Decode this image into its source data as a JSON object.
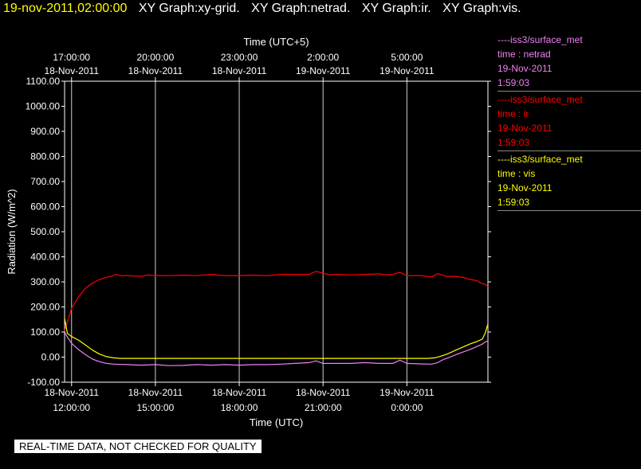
{
  "header": {
    "timestamp": "19-nov-2011,02:00:00",
    "graph_titles": [
      "XY Graph:xy-grid.",
      "XY Graph:netrad.",
      "XY Graph:ir.",
      "XY Graph:vis."
    ]
  },
  "legend": [
    {
      "source": "----iss3/surface_met",
      "label": "time : netrad",
      "date": "19-Nov-2011",
      "time": "1:59:03",
      "color": "#ee82ee"
    },
    {
      "source": "----iss3/surface_met",
      "label": "time : ir",
      "date": "19-Nov-2011",
      "time": "1:59:03",
      "color": "#ff0000"
    },
    {
      "source": "----iss3/surface_met",
      "label": "time : vis",
      "date": "19-Nov-2011",
      "time": "1:59:03",
      "color": "#ffff00"
    }
  ],
  "quality_note": "REAL-TIME DATA, NOT CHECKED FOR QUALITY",
  "chart_data": {
    "type": "line",
    "xlabel": "Time (UTC)",
    "x2label": "Time (UTC+5)",
    "ylabel": "Radiation (W/m^2)",
    "x_range_hours": [
      11.75,
      26.9
    ],
    "ylim": [
      -100,
      1100
    ],
    "y_ticks": [
      -100,
      0,
      100,
      200,
      300,
      400,
      500,
      600,
      700,
      800,
      900,
      1000,
      1100
    ],
    "y_tick_labels": [
      "-100.00",
      "0.00",
      "100.00",
      "200.00",
      "300.00",
      "400.00",
      "500.00",
      "600.00",
      "700.00",
      "800.00",
      "900.00",
      "1000.00",
      "1100.00"
    ],
    "grid": true,
    "bottom_ticks": [
      {
        "h": 12,
        "date": "18-Nov-2011",
        "time": "12:00:00"
      },
      {
        "h": 15,
        "date": "18-Nov-2011",
        "time": "15:00:00"
      },
      {
        "h": 18,
        "date": "18-Nov-2011",
        "time": "18:00:00"
      },
      {
        "h": 21,
        "date": "18-Nov-2011",
        "time": "21:00:00"
      },
      {
        "h": 24,
        "date": "19-Nov-2011",
        "time": "0:00:00"
      }
    ],
    "top_ticks": [
      {
        "h": 12,
        "time": "17:00:00",
        "date": "18-Nov-2011"
      },
      {
        "h": 15,
        "time": "20:00:00",
        "date": "18-Nov-2011"
      },
      {
        "h": 18,
        "time": "23:00:00",
        "date": "18-Nov-2011"
      },
      {
        "h": 21,
        "time": "2:00:00",
        "date": "19-Nov-2011"
      },
      {
        "h": 24,
        "time": "5:00:00",
        "date": "19-Nov-2011"
      }
    ],
    "series": [
      {
        "key": "ir",
        "color": "#ff0000",
        "points": [
          [
            11.75,
            105
          ],
          [
            11.85,
            140
          ],
          [
            12.0,
            195
          ],
          [
            12.25,
            240
          ],
          [
            12.5,
            275
          ],
          [
            12.75,
            295
          ],
          [
            13.0,
            310
          ],
          [
            13.25,
            318
          ],
          [
            13.4,
            322
          ],
          [
            13.5,
            325
          ],
          [
            13.6,
            330
          ],
          [
            13.75,
            325
          ],
          [
            14.0,
            325
          ],
          [
            14.5,
            322
          ],
          [
            14.75,
            328
          ],
          [
            15.0,
            325
          ],
          [
            15.5,
            325
          ],
          [
            16.0,
            327
          ],
          [
            16.5,
            325
          ],
          [
            17.0,
            330
          ],
          [
            17.5,
            325
          ],
          [
            18.0,
            325
          ],
          [
            18.5,
            327
          ],
          [
            19.0,
            325
          ],
          [
            19.5,
            330
          ],
          [
            20.0,
            330
          ],
          [
            20.5,
            330
          ],
          [
            20.75,
            342
          ],
          [
            21.0,
            335
          ],
          [
            21.25,
            328
          ],
          [
            21.5,
            330
          ],
          [
            22.0,
            328
          ],
          [
            22.5,
            330
          ],
          [
            23.0,
            332
          ],
          [
            23.25,
            328
          ],
          [
            23.5,
            330
          ],
          [
            23.75,
            338
          ],
          [
            24.0,
            325
          ],
          [
            24.5,
            325
          ],
          [
            24.9,
            320
          ],
          [
            25.1,
            333
          ],
          [
            25.4,
            322
          ],
          [
            25.75,
            322
          ],
          [
            26.0,
            318
          ],
          [
            26.25,
            310
          ],
          [
            26.5,
            305
          ],
          [
            26.65,
            295
          ],
          [
            26.8,
            290
          ],
          [
            26.9,
            280
          ]
        ]
      },
      {
        "key": "vis",
        "color": "#ffff00",
        "points": [
          [
            11.75,
            155
          ],
          [
            11.85,
            95
          ],
          [
            12.0,
            82
          ],
          [
            12.25,
            68
          ],
          [
            12.5,
            48
          ],
          [
            12.75,
            28
          ],
          [
            13.0,
            12
          ],
          [
            13.25,
            2
          ],
          [
            13.5,
            -3
          ],
          [
            13.75,
            -5
          ],
          [
            14.5,
            -5
          ],
          [
            16.0,
            -5
          ],
          [
            18.0,
            -5
          ],
          [
            20.0,
            -5
          ],
          [
            22.0,
            -5
          ],
          [
            24.0,
            -5
          ],
          [
            24.75,
            -5
          ],
          [
            25.0,
            -3
          ],
          [
            25.25,
            5
          ],
          [
            25.5,
            15
          ],
          [
            25.75,
            28
          ],
          [
            26.0,
            40
          ],
          [
            26.25,
            52
          ],
          [
            26.5,
            62
          ],
          [
            26.7,
            72
          ],
          [
            26.8,
            95
          ],
          [
            26.9,
            132
          ]
        ]
      },
      {
        "key": "netrad",
        "color": "#ee82ee",
        "points": [
          [
            11.75,
            100
          ],
          [
            11.85,
            80
          ],
          [
            12.0,
            55
          ],
          [
            12.25,
            30
          ],
          [
            12.5,
            10
          ],
          [
            12.75,
            -8
          ],
          [
            13.0,
            -18
          ],
          [
            13.25,
            -25
          ],
          [
            13.5,
            -28
          ],
          [
            14.0,
            -30
          ],
          [
            14.5,
            -32
          ],
          [
            15.0,
            -30
          ],
          [
            15.5,
            -34
          ],
          [
            16.0,
            -33
          ],
          [
            16.5,
            -30
          ],
          [
            17.0,
            -32
          ],
          [
            17.5,
            -30
          ],
          [
            18.0,
            -32
          ],
          [
            18.5,
            -30
          ],
          [
            19.0,
            -30
          ],
          [
            19.5,
            -28
          ],
          [
            20.0,
            -25
          ],
          [
            20.5,
            -22
          ],
          [
            20.75,
            -15
          ],
          [
            21.0,
            -25
          ],
          [
            21.5,
            -25
          ],
          [
            22.0,
            -25
          ],
          [
            22.5,
            -22
          ],
          [
            23.0,
            -25
          ],
          [
            23.5,
            -25
          ],
          [
            23.75,
            -12
          ],
          [
            24.0,
            -25
          ],
          [
            24.5,
            -27
          ],
          [
            24.9,
            -28
          ],
          [
            25.1,
            -22
          ],
          [
            25.3,
            -10
          ],
          [
            25.5,
            -2
          ],
          [
            25.75,
            10
          ],
          [
            26.0,
            20
          ],
          [
            26.25,
            30
          ],
          [
            26.5,
            42
          ],
          [
            26.7,
            52
          ],
          [
            26.8,
            60
          ],
          [
            26.9,
            65
          ]
        ]
      }
    ]
  }
}
